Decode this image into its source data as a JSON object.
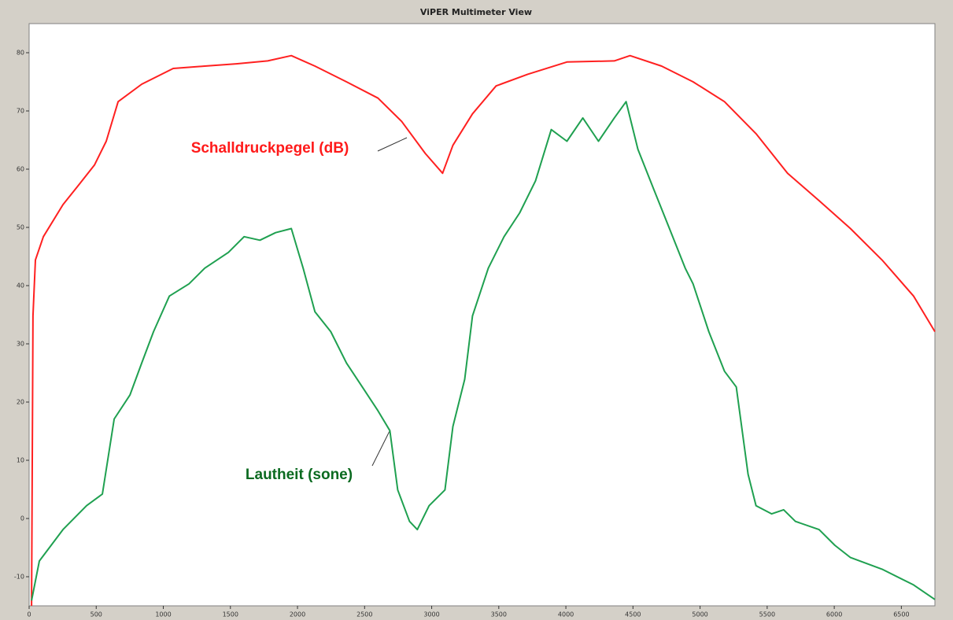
{
  "chart_data": {
    "type": "line",
    "title": "ViPER Multimeter View",
    "annotations": [
      "Schalldruckpegel (dB)",
      "Lautheit (sone)"
    ],
    "xlim": [
      0,
      6750
    ],
    "xticks": [
      0,
      500,
      1000,
      1500,
      2000,
      2500,
      3000,
      3500,
      4000,
      4500,
      5000,
      5500,
      6000,
      6500
    ],
    "ylim": [
      -15,
      85
    ],
    "yticks": [
      -10,
      0,
      10,
      20,
      30,
      40,
      50,
      60,
      70,
      80
    ],
    "grid": false,
    "series": [
      {
        "name": "Schalldruckpegel (dB)",
        "color": "#ff2020",
        "x": [
          18,
          29,
          47,
          106,
          252,
          370,
          487,
          575,
          663,
          839,
          1074,
          1309,
          1544,
          1778,
          1954,
          2130,
          2365,
          2600,
          2776,
          2952,
          3081,
          3158,
          3304,
          3480,
          3715,
          4008,
          4361,
          4478,
          4713,
          4948,
          5182,
          5417,
          5652,
          5887,
          6121,
          6356,
          6591,
          6750
        ],
        "values": [
          -15,
          34.8,
          44.4,
          48.4,
          53.9,
          57.3,
          60.7,
          64.8,
          71.6,
          74.6,
          77.3,
          77.7,
          78.1,
          78.6,
          79.5,
          77.7,
          75.0,
          72.2,
          68.2,
          62.7,
          59.3,
          64.1,
          69.5,
          74.3,
          76.3,
          78.4,
          78.6,
          79.5,
          77.7,
          75.0,
          71.6,
          66.1,
          59.3,
          54.6,
          49.8,
          44.4,
          38.2,
          32.1
        ]
      },
      {
        "name": "Lautheit (sone)",
        "color": "#1fa050",
        "x": [
          18,
          76,
          252,
          428,
          546,
          634,
          751,
          839,
          927,
          1045,
          1191,
          1309,
          1485,
          1602,
          1720,
          1837,
          1954,
          2042,
          2130,
          2248,
          2365,
          2483,
          2600,
          2688,
          2747,
          2835,
          2893,
          2981,
          3099,
          3158,
          3246,
          3304,
          3422,
          3539,
          3656,
          3774,
          3891,
          4008,
          4126,
          4243,
          4361,
          4449,
          4537,
          4654,
          4772,
          4889,
          4948,
          5065,
          5182,
          5270,
          5358,
          5417,
          5534,
          5623,
          5711,
          5887,
          6004,
          6121,
          6356,
          6591,
          6750
        ],
        "values": [
          -14.1,
          -7.3,
          -1.9,
          2.2,
          4.2,
          17.1,
          21.2,
          26.7,
          32.1,
          38.2,
          40.3,
          43.0,
          45.7,
          48.4,
          47.8,
          49.1,
          49.8,
          43.0,
          35.5,
          32.1,
          26.7,
          22.6,
          18.5,
          15.1,
          4.9,
          -0.5,
          -1.9,
          2.2,
          4.9,
          15.8,
          23.9,
          34.8,
          43.0,
          48.4,
          52.5,
          58.0,
          66.8,
          64.8,
          68.8,
          64.8,
          68.8,
          71.6,
          63.4,
          56.6,
          49.8,
          43.0,
          40.3,
          32.1,
          25.3,
          22.6,
          7.6,
          2.2,
          0.8,
          1.5,
          -0.5,
          -1.9,
          -4.6,
          -6.7,
          -8.7,
          -11.4,
          -13.9
        ]
      }
    ]
  }
}
